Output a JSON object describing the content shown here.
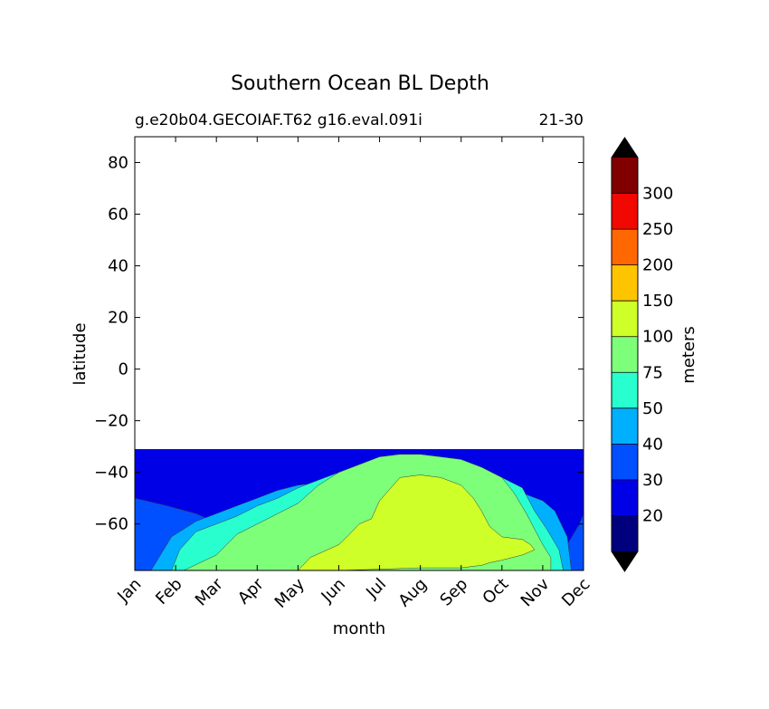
{
  "chart_data": {
    "type": "contour",
    "title": "Southern Ocean BL Depth",
    "subtitle_left": "g.e20b04.GECOIAF.T62 g16.eval.091i",
    "subtitle_right": "21-30",
    "xlabel": "month",
    "ylabel": "latitude",
    "x_tick_labels": [
      "Jan",
      "Feb",
      "Mar",
      "Apr",
      "May",
      "Jun",
      "Jul",
      "Aug",
      "Sep",
      "Oct",
      "Nov",
      "Dec"
    ],
    "yticks": [
      80,
      60,
      40,
      20,
      0,
      -20,
      -40,
      -60
    ],
    "ytick_labels": [
      "80",
      "60",
      "40",
      "20",
      "0",
      "−20",
      "−40",
      "−60"
    ],
    "xlim": [
      0,
      11
    ],
    "ylim": [
      -78,
      90
    ],
    "data_lat_range": [
      -78,
      -31
    ],
    "colorbar": {
      "label": "meters",
      "levels": [
        10,
        20,
        30,
        40,
        50,
        75,
        100,
        150,
        200,
        250,
        300,
        350
      ],
      "tick_labels": [
        "20",
        "30",
        "40",
        "50",
        "75",
        "100",
        "150",
        "200",
        "250",
        "300"
      ],
      "colors": [
        "#00007f",
        "#0000e6",
        "#0050ff",
        "#00b0ff",
        "#29ffce",
        "#7dff7a",
        "#ceff29",
        "#ffc400",
        "#ff6800",
        "#f10800",
        "#800000"
      ],
      "extend_min_color": "#000000",
      "extend_max_color": "#000000"
    },
    "contour_regions": [
      {
        "level": 2,
        "points": [
          [
            0,
            -50
          ],
          [
            0.8,
            -53
          ],
          [
            1.5,
            -56
          ],
          [
            2.4,
            -62
          ],
          [
            3.5,
            -67
          ],
          [
            4.2,
            -70
          ],
          [
            4.8,
            -73
          ],
          [
            5.4,
            -75
          ],
          [
            6.5,
            -76
          ],
          [
            7.5,
            -76
          ],
          [
            8.5,
            -76.5
          ],
          [
            9.4,
            -76.5
          ],
          [
            10.2,
            -74
          ],
          [
            10.6,
            -68
          ],
          [
            10.9,
            -60
          ],
          [
            11,
            -56
          ],
          [
            11,
            -78
          ],
          [
            0,
            -78
          ]
        ]
      },
      {
        "level": 3,
        "points": [
          [
            0.4,
            -78
          ],
          [
            0.9,
            -65
          ],
          [
            1.5,
            -59
          ],
          [
            2,
            -56
          ],
          [
            2.5,
            -53
          ],
          [
            3,
            -50
          ],
          [
            3.5,
            -47
          ],
          [
            4,
            -45
          ],
          [
            4.5,
            -44
          ],
          [
            5,
            -43
          ],
          [
            5.5,
            -42
          ],
          [
            6,
            -41
          ],
          [
            6.5,
            -41
          ],
          [
            7,
            -42
          ],
          [
            7.5,
            -43
          ],
          [
            8,
            -44
          ],
          [
            8.5,
            -45
          ],
          [
            9,
            -46
          ],
          [
            9.5,
            -48
          ],
          [
            10,
            -51
          ],
          [
            10.3,
            -55
          ],
          [
            10.6,
            -65
          ],
          [
            10.7,
            -78
          ]
        ]
      },
      {
        "level": 4,
        "points": [
          [
            0.9,
            -78
          ],
          [
            1.1,
            -70
          ],
          [
            1.5,
            -63
          ],
          [
            2,
            -60
          ],
          [
            2.5,
            -57
          ],
          [
            3,
            -53
          ],
          [
            3.5,
            -50
          ],
          [
            4,
            -46
          ],
          [
            4.5,
            -43
          ],
          [
            5,
            -40
          ],
          [
            5.5,
            -37
          ],
          [
            6,
            -36
          ],
          [
            6.5,
            -35
          ],
          [
            7,
            -35
          ],
          [
            7.5,
            -36
          ],
          [
            8,
            -37
          ],
          [
            8.5,
            -39
          ],
          [
            9,
            -42
          ],
          [
            9.5,
            -46
          ],
          [
            9.8,
            -55
          ],
          [
            10.1,
            -62
          ],
          [
            10.4,
            -70
          ],
          [
            10.5,
            -78
          ]
        ]
      },
      {
        "level": 5,
        "points": [
          [
            1.2,
            -78
          ],
          [
            2,
            -72
          ],
          [
            2.5,
            -64
          ],
          [
            3,
            -60
          ],
          [
            3.5,
            -56
          ],
          [
            4,
            -52
          ],
          [
            4.5,
            -45
          ],
          [
            5,
            -40
          ],
          [
            5.5,
            -37
          ],
          [
            6,
            -34
          ],
          [
            6.5,
            -33
          ],
          [
            7,
            -33
          ],
          [
            7.5,
            -34
          ],
          [
            8,
            -35
          ],
          [
            8.5,
            -38
          ],
          [
            9,
            -42
          ],
          [
            9.3,
            -48
          ],
          [
            9.6,
            -56
          ],
          [
            9.8,
            -62
          ],
          [
            10,
            -68
          ],
          [
            10.2,
            -73
          ],
          [
            10.2,
            -78
          ]
        ]
      },
      {
        "level": 6,
        "points": [
          [
            4,
            -78
          ],
          [
            4.3,
            -73
          ],
          [
            5,
            -68
          ],
          [
            5.2,
            -65
          ],
          [
            5.5,
            -60
          ],
          [
            5.8,
            -58
          ],
          [
            6,
            -51
          ],
          [
            6.5,
            -42
          ],
          [
            7,
            -41
          ],
          [
            7.5,
            -42
          ],
          [
            8,
            -45
          ],
          [
            8.3,
            -50
          ],
          [
            8.5,
            -55
          ],
          [
            8.7,
            -61
          ],
          [
            9,
            -65
          ],
          [
            9.5,
            -66
          ],
          [
            9.7,
            -68
          ],
          [
            9.8,
            -70
          ],
          [
            9.5,
            -72
          ],
          [
            9,
            -74
          ],
          [
            8.7,
            -75
          ],
          [
            8.5,
            -76
          ],
          [
            8,
            -77
          ],
          [
            7,
            -77
          ],
          [
            6,
            -77.5
          ],
          [
            5,
            -78
          ]
        ]
      }
    ]
  }
}
